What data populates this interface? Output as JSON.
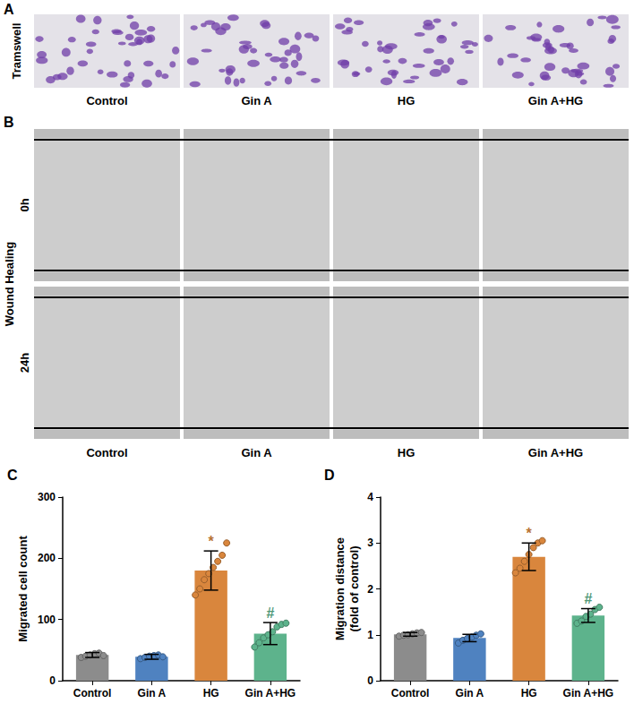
{
  "image_panels": [
    {
      "panel_label": "A",
      "row_labels": [
        "Tramswell"
      ],
      "columns": [
        "Control",
        "Gin A",
        "HG",
        "Gin A+HG"
      ]
    },
    {
      "panel_label": "B",
      "group_label": "Wound Healing",
      "row_labels": [
        "0h",
        "24h"
      ],
      "columns": [
        "Control",
        "Gin A",
        "HG",
        "Gin A+HG"
      ]
    }
  ],
  "chart_data": [
    {
      "type": "bar",
      "panel_label": "C",
      "y_label": "Migrated cell count",
      "categories": [
        "Control",
        "Gin A",
        "HG",
        "Gin A+HG"
      ],
      "values": [
        42,
        39,
        180,
        77
      ],
      "errors": [
        4,
        4,
        32,
        18
      ],
      "points": [
        [
          38,
          40,
          42,
          44,
          45,
          41
        ],
        [
          36,
          38,
          40,
          41,
          42,
          39
        ],
        [
          140,
          150,
          165,
          175,
          185,
          195,
          205,
          225
        ],
        [
          55,
          62,
          70,
          75,
          80,
          88,
          92,
          94
        ]
      ],
      "colors": [
        "#8c8c8c",
        "#4f82c0",
        "#d9863d",
        "#5db38c"
      ],
      "annotations": [
        {
          "category": "HG",
          "text": "*"
        },
        {
          "category": "Gin A+HG",
          "text": "#"
        }
      ],
      "ylim": [
        0,
        300
      ],
      "yticks": [
        0,
        100,
        200,
        300
      ],
      "grid": false
    },
    {
      "type": "bar",
      "panel_label": "D",
      "y_label": "Migration distance (fold of control)",
      "categories": [
        "Control",
        "Gin A",
        "HG",
        "Gin A+HG"
      ],
      "values": [
        1.01,
        0.93,
        2.7,
        1.42
      ],
      "errors": [
        0.04,
        0.08,
        0.3,
        0.15
      ],
      "points": [
        [
          0.97,
          0.99,
          1.0,
          1.02,
          1.04,
          1.05
        ],
        [
          0.82,
          0.88,
          0.92,
          0.95,
          0.99,
          1.02
        ],
        [
          2.35,
          2.45,
          2.6,
          2.75,
          2.9,
          3.0,
          3.05
        ],
        [
          1.25,
          1.3,
          1.4,
          1.45,
          1.55,
          1.6
        ]
      ],
      "colors": [
        "#8c8c8c",
        "#4f82c0",
        "#d9863d",
        "#5db38c"
      ],
      "annotations": [
        {
          "category": "HG",
          "text": "*"
        },
        {
          "category": "Gin A+HG",
          "text": "#"
        }
      ],
      "ylim": [
        0,
        4
      ],
      "yticks": [
        0,
        1,
        2,
        3,
        4
      ],
      "grid": false
    }
  ]
}
